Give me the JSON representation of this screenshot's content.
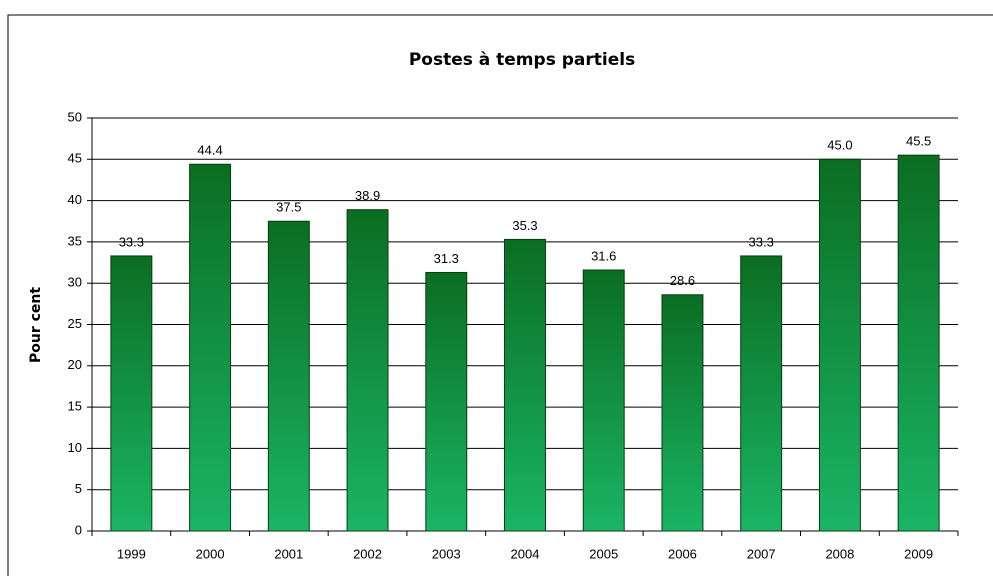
{
  "chart_data": {
    "type": "bar",
    "title": "Postes à temps partiels",
    "y_label": "Pour cent",
    "categories": [
      "1999",
      "2000",
      "2001",
      "2002",
      "2003",
      "2004",
      "2005",
      "2006",
      "2007",
      "2008",
      "2009"
    ],
    "values": [
      33.3,
      44.4,
      37.5,
      38.9,
      31.3,
      35.3,
      31.6,
      28.6,
      33.3,
      45.0,
      45.5
    ],
    "value_labels": [
      "33.3",
      "44.4",
      "37.5",
      "38.9",
      "31.3",
      "35.3",
      "31.6",
      "28.6",
      "33.3",
      "45.0",
      "45.5"
    ],
    "color": "#0b6e22",
    "ylim": [
      0,
      50
    ],
    "yticks": [
      0,
      5,
      10,
      15,
      20,
      25,
      30,
      35,
      40,
      45,
      50
    ],
    "grid": true
  }
}
